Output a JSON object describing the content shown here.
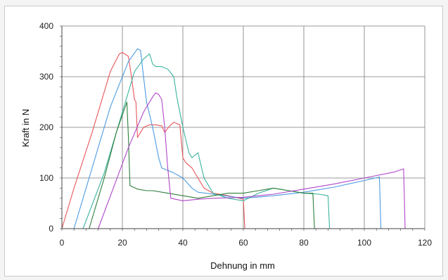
{
  "chart_data": {
    "type": "line",
    "title": "",
    "xlabel": "Dehnung in mm",
    "ylabel": "Kraft in N",
    "xlim": [
      0,
      120
    ],
    "ylim": [
      0,
      400
    ],
    "xticks": [
      0,
      20,
      40,
      60,
      80,
      100,
      120
    ],
    "yticks": [
      0,
      100,
      200,
      300,
      400
    ],
    "grid": true,
    "series": [
      {
        "color": "#e8555a",
        "x": [
          0,
          4,
          10,
          16,
          19,
          20,
          22,
          23,
          24,
          24.5,
          25,
          27,
          29,
          31,
          33,
          34,
          35,
          36,
          37,
          39,
          40,
          41,
          43,
          45,
          47,
          50,
          55,
          60,
          60.5
        ],
        "y": [
          0,
          80,
          190,
          310,
          345,
          348,
          340,
          300,
          255,
          250,
          180,
          200,
          205,
          205,
          203,
          190,
          198,
          205,
          210,
          205,
          140,
          130,
          120,
          100,
          80,
          70,
          65,
          58,
          0
        ]
      },
      {
        "color": "#4b9be0",
        "x": [
          4,
          10,
          16,
          22,
          25,
          26,
          27,
          28,
          30,
          32,
          33,
          35,
          37,
          40,
          43,
          45,
          50,
          60,
          70,
          80,
          90,
          100,
          105,
          105.5
        ],
        "y": [
          0,
          120,
          240,
          330,
          355,
          352,
          300,
          250,
          200,
          140,
          120,
          115,
          110,
          100,
          80,
          72,
          68,
          60,
          65,
          72,
          82,
          95,
          102,
          0
        ]
      },
      {
        "color": "#3bb3a0",
        "x": [
          7,
          14,
          20,
          24,
          27,
          29,
          30,
          31,
          33,
          35,
          37,
          38,
          39,
          40,
          42,
          43,
          44,
          45,
          47,
          50,
          55,
          60,
          65,
          70,
          75,
          80,
          85,
          88,
          88.5
        ],
        "y": [
          0,
          110,
          230,
          310,
          335,
          345,
          325,
          320,
          320,
          315,
          300,
          260,
          230,
          200,
          150,
          140,
          145,
          150,
          100,
          70,
          60,
          55,
          70,
          80,
          75,
          70,
          68,
          65,
          0
        ]
      },
      {
        "color": "#2e7f3a",
        "x": [
          9,
          14,
          18,
          21.5,
          22,
          22.5,
          25,
          28,
          30,
          35,
          40,
          45,
          50,
          55,
          60,
          65,
          70,
          75,
          80,
          83,
          83.5
        ],
        "y": [
          0,
          100,
          190,
          250,
          180,
          85,
          78,
          75,
          75,
          70,
          65,
          60,
          65,
          70,
          70,
          75,
          80,
          75,
          70,
          70,
          0
        ]
      },
      {
        "color": "#b048c9",
        "x": [
          12,
          17,
          22,
          27,
          30,
          31,
          32,
          33,
          34,
          35,
          36,
          40,
          45,
          50,
          60,
          70,
          80,
          90,
          100,
          110,
          113,
          113.5
        ],
        "y": [
          0,
          80,
          160,
          230,
          260,
          268,
          265,
          255,
          200,
          120,
          60,
          55,
          58,
          60,
          62,
          68,
          78,
          88,
          100,
          112,
          118,
          0
        ]
      }
    ]
  }
}
